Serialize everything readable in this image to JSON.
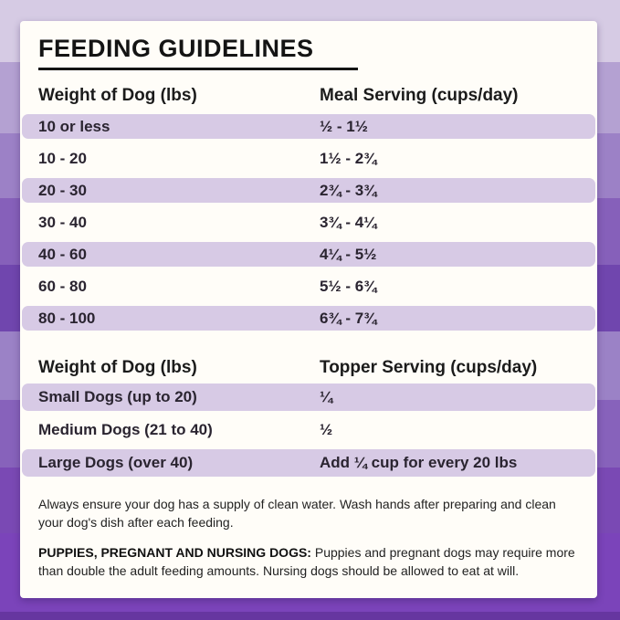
{
  "title": "FEEDING GUIDELINES",
  "colors": {
    "card_background": "#fffdf8",
    "row_stripe": "#d7cae5",
    "text_dark": "#2a2430",
    "title_color": "#141414",
    "background_bands": [
      "#d6cbe4",
      "#b4a1d2",
      "#9c81c6",
      "#8660ba",
      "#7046ae",
      "#9b82c6",
      "#8762bb",
      "#7a49b4",
      "#7b44ba",
      "#6636a0"
    ]
  },
  "meal_table": {
    "headers": {
      "weight": "Weight of Dog (lbs)",
      "serving": "Meal Serving (cups/day)"
    },
    "rows": [
      {
        "weight": "10 or less",
        "serving": "½ - 1½"
      },
      {
        "weight": "10 - 20",
        "serving": "1½ - 2¾"
      },
      {
        "weight": "20 - 30",
        "serving": "2¾ - 3¾"
      },
      {
        "weight": "30 - 40",
        "serving": "3¾ - 4¼"
      },
      {
        "weight": "40 - 60",
        "serving": "4¼ - 5½"
      },
      {
        "weight": "60 - 80",
        "serving": "5½ - 6¾"
      },
      {
        "weight": "80 - 100",
        "serving": "6¾ - 7¾"
      }
    ]
  },
  "topper_table": {
    "headers": {
      "weight": "Weight of Dog (lbs)",
      "serving": "Topper Serving (cups/day)"
    },
    "rows": [
      {
        "weight": "Small Dogs (up to 20)",
        "serving": "¼"
      },
      {
        "weight": "Medium Dogs (21 to 40)",
        "serving": "½"
      },
      {
        "weight": "Large Dogs (over 40)",
        "serving": "Add ¼ cup for every 20 lbs"
      }
    ]
  },
  "notes": {
    "water": "Always ensure your dog has a supply of clean water. Wash hands after preparing and clean your dog's dish after each feeding.",
    "puppies_label": "PUPPIES, PREGNANT AND NURSING DOGS:",
    "puppies_text": " Puppies and pregnant dogs may require more than double the adult feeding amounts. Nursing dogs should be allowed to eat at will."
  }
}
